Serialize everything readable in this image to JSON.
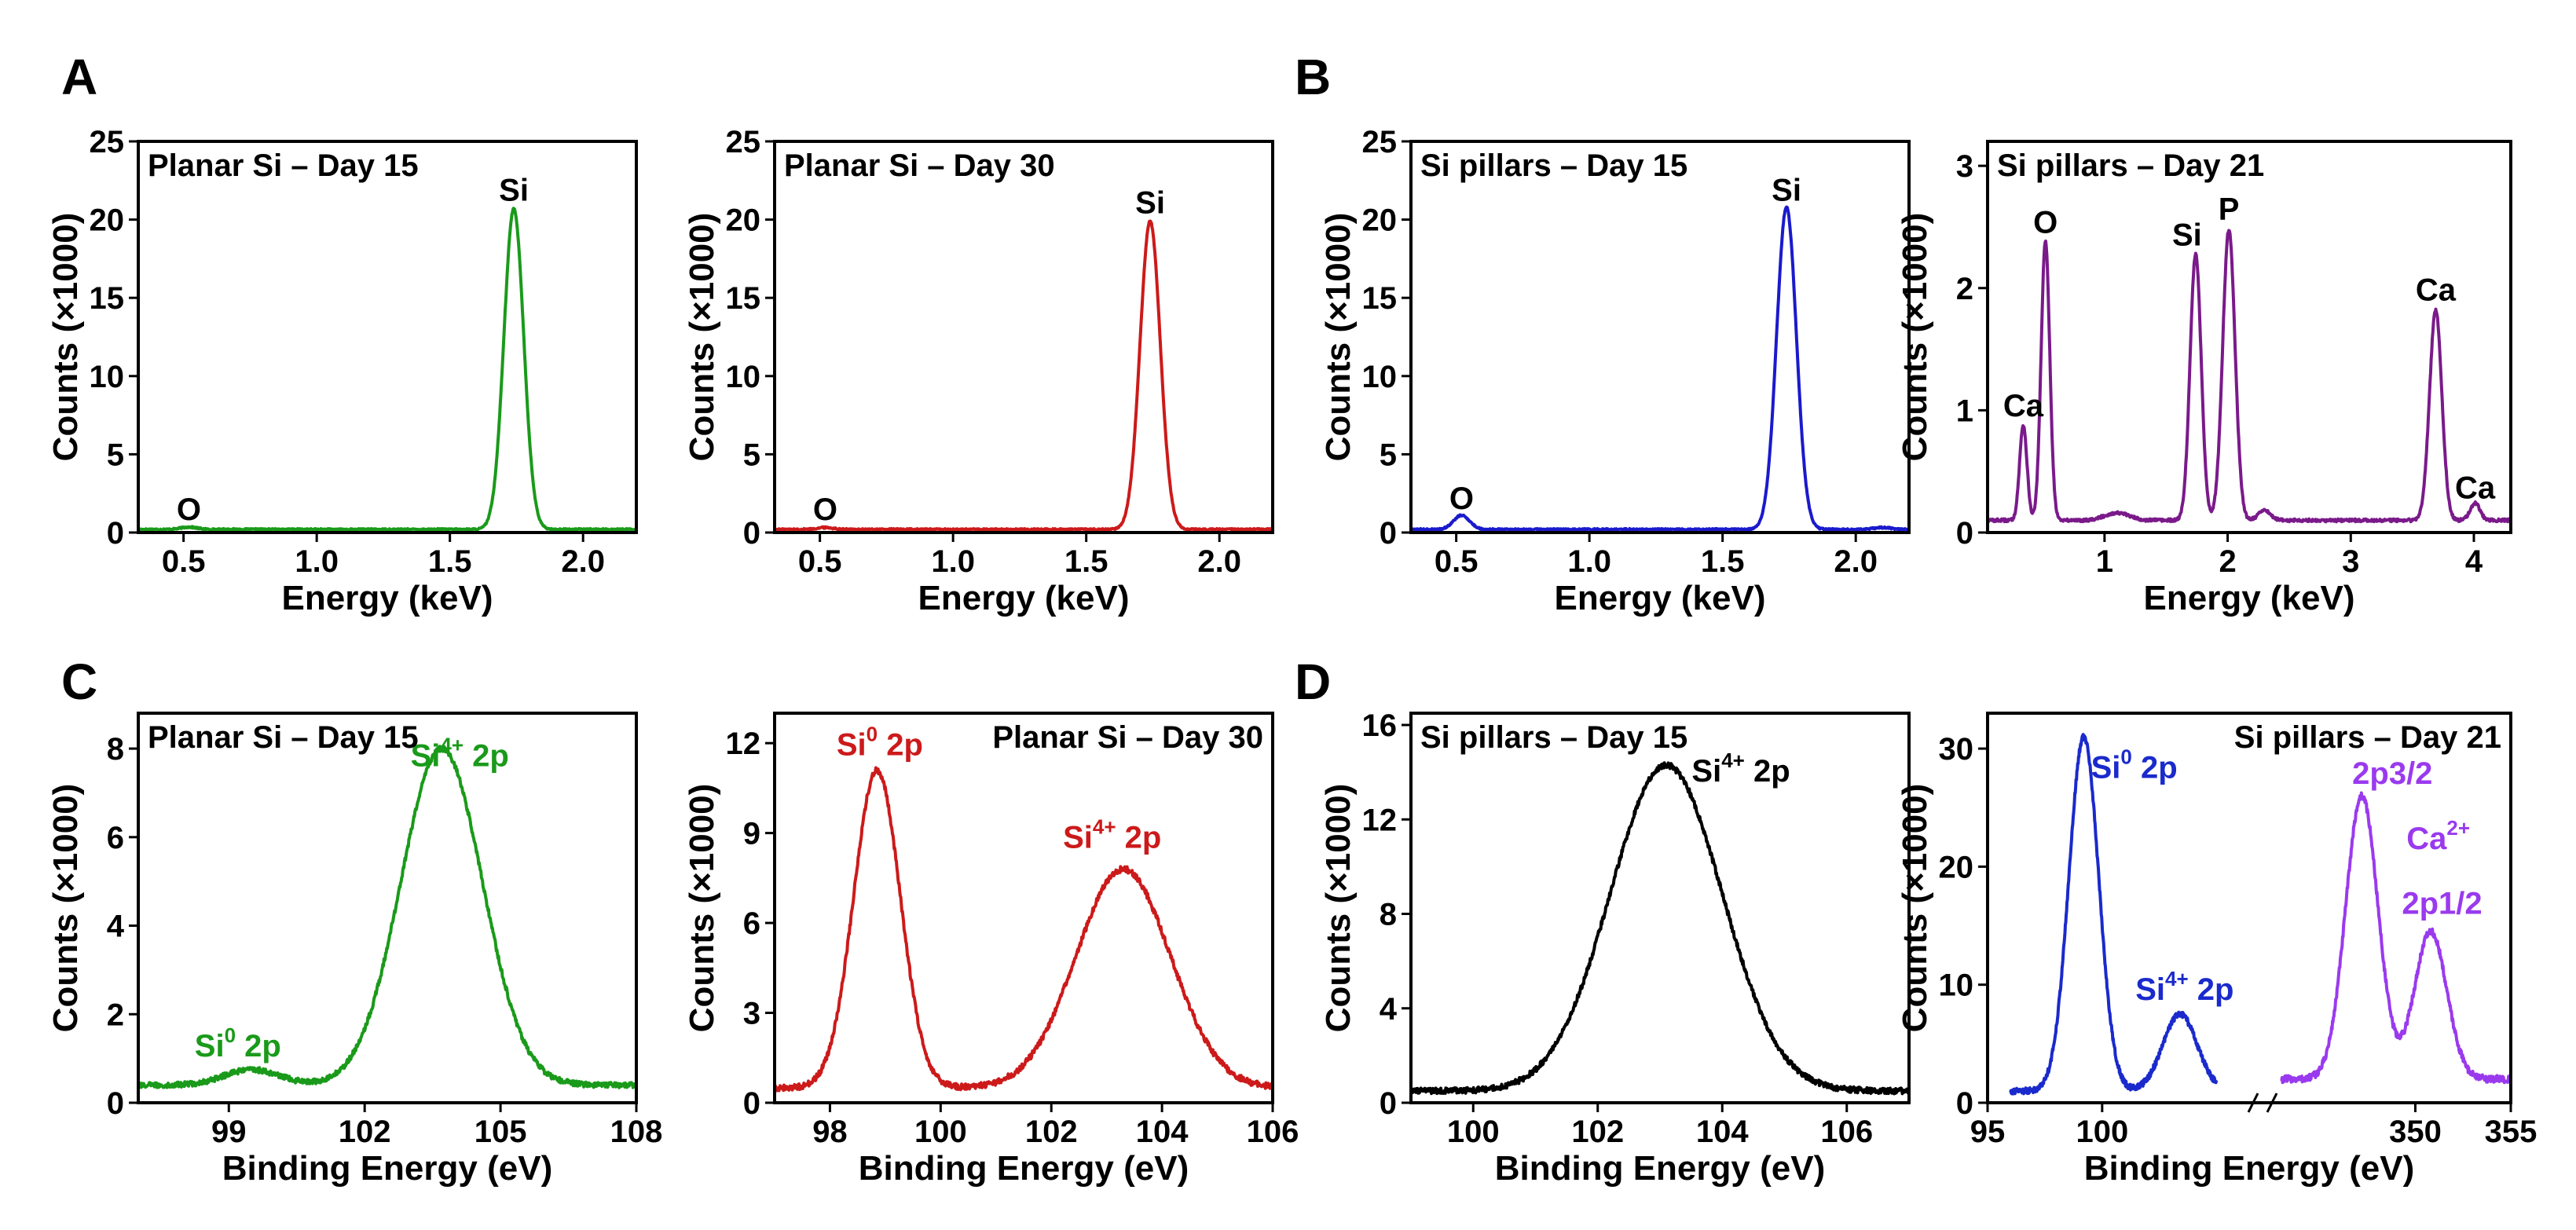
{
  "panel_letters": [
    "A",
    "B",
    "C",
    "D"
  ],
  "chart_data": [
    {
      "id": "a1",
      "type": "line",
      "color": "#1a9a1a",
      "style": "eds",
      "title": "Planar Si – Day 15",
      "xlabel": "Energy (keV)",
      "ylabel": "Counts (×1000)",
      "xlim": [
        0.33,
        2.2
      ],
      "ylim": [
        0,
        25
      ],
      "xticks": [
        0.5,
        1.0,
        1.5,
        2.0
      ],
      "xticklabels": [
        "0.5",
        "1.0",
        "1.5",
        "2.0"
      ],
      "yticks": [
        0,
        5,
        10,
        15,
        20,
        25
      ],
      "yticklabels": [
        "0",
        "5",
        "10",
        "15",
        "20",
        "25"
      ],
      "baseline": 0.2,
      "noise": 0.05,
      "slope": 0,
      "peaks": [
        [
          0.52,
          0.15,
          0.03
        ],
        [
          1.74,
          20.5,
          0.037
        ]
      ],
      "annotations": [
        {
          "text": "O",
          "x": 0.52,
          "y": 0.8,
          "color": "#000000"
        },
        {
          "text": "Si",
          "x": 1.74,
          "y": 21.2,
          "color": "#000000"
        }
      ]
    },
    {
      "id": "a2",
      "type": "line",
      "color": "#cc1a1a",
      "style": "eds",
      "title": "Planar Si – Day 30",
      "xlabel": "Energy (keV)",
      "ylabel": "Counts (×1000)",
      "xlim": [
        0.33,
        2.2
      ],
      "ylim": [
        0,
        25
      ],
      "xticks": [
        0.5,
        1.0,
        1.5,
        2.0
      ],
      "xticklabels": [
        "0.5",
        "1.0",
        "1.5",
        "2.0"
      ],
      "yticks": [
        0,
        5,
        10,
        15,
        20,
        25
      ],
      "yticklabels": [
        "0",
        "5",
        "10",
        "15",
        "20",
        "25"
      ],
      "baseline": 0.2,
      "noise": 0.05,
      "slope": 0,
      "peaks": [
        [
          0.52,
          0.12,
          0.03
        ],
        [
          1.74,
          19.7,
          0.038
        ]
      ],
      "annotations": [
        {
          "text": "O",
          "x": 0.52,
          "y": 0.8,
          "color": "#000000"
        },
        {
          "text": "Si",
          "x": 1.74,
          "y": 20.4,
          "color": "#000000"
        }
      ]
    },
    {
      "id": "b1",
      "type": "line",
      "color": "#1a1acc",
      "style": "eds",
      "title": "Si pillars – Day 15",
      "xlabel": "Energy (keV)",
      "ylabel": "Counts (×1000)",
      "xlim": [
        0.33,
        2.2
      ],
      "ylim": [
        0,
        25
      ],
      "xticks": [
        0.5,
        1.0,
        1.5,
        2.0
      ],
      "xticklabels": [
        "0.5",
        "1.0",
        "1.5",
        "2.0"
      ],
      "yticks": [
        0,
        5,
        10,
        15,
        20,
        25
      ],
      "yticklabels": [
        "0",
        "5",
        "10",
        "15",
        "20",
        "25"
      ],
      "baseline": 0.2,
      "noise": 0.05,
      "slope": 0,
      "peaks": [
        [
          0.52,
          0.9,
          0.03
        ],
        [
          1.74,
          20.6,
          0.037
        ],
        [
          2.1,
          0.12,
          0.03
        ]
      ],
      "annotations": [
        {
          "text": "O",
          "x": 0.52,
          "y": 1.5,
          "color": "#000000"
        },
        {
          "text": "Si",
          "x": 1.74,
          "y": 21.2,
          "color": "#000000"
        }
      ]
    },
    {
      "id": "b2",
      "type": "line",
      "color": "#7a1a8a",
      "style": "eds",
      "title": "Si pillars – Day 21",
      "xlabel": "Energy (keV)",
      "ylabel": "Counts (×1000)",
      "xlim": [
        0.05,
        4.3
      ],
      "ylim": [
        0,
        3.2
      ],
      "xticks": [
        1,
        2,
        3,
        4
      ],
      "xticklabels": [
        "1",
        "2",
        "3",
        "4"
      ],
      "yticks": [
        0,
        1,
        2,
        3
      ],
      "yticklabels": [
        "0",
        "1",
        "2",
        "3"
      ],
      "baseline": 0.1,
      "noise": 0.012,
      "slope": 0,
      "peaks": [
        [
          0.34,
          0.78,
          0.03
        ],
        [
          0.52,
          2.28,
          0.035
        ],
        [
          1.1,
          0.06,
          0.1
        ],
        [
          1.74,
          2.18,
          0.045
        ],
        [
          2.01,
          2.38,
          0.05
        ],
        [
          2.3,
          0.08,
          0.05
        ],
        [
          3.69,
          1.72,
          0.05
        ],
        [
          4.01,
          0.14,
          0.04
        ]
      ],
      "annotations": [
        {
          "text": "Ca",
          "x": 0.34,
          "y": 0.95,
          "color": "#000000"
        },
        {
          "text": "O",
          "x": 0.52,
          "y": 2.45,
          "color": "#000000"
        },
        {
          "text": "Si",
          "x": 1.67,
          "y": 2.35,
          "color": "#000000"
        },
        {
          "text": "P",
          "x": 2.01,
          "y": 2.56,
          "color": "#000000"
        },
        {
          "text": "Ca",
          "x": 3.69,
          "y": 1.9,
          "color": "#000000"
        },
        {
          "text": "Ca",
          "x": 4.01,
          "y": 0.28,
          "color": "#000000"
        }
      ]
    },
    {
      "id": "c1",
      "type": "line",
      "color": "#1a9a1a",
      "style": "xps",
      "title": "Planar Si – Day 15",
      "xlabel": "Binding Energy (eV)",
      "ylabel": "Counts (×1000)",
      "xlim": [
        97,
        108
      ],
      "ylim": [
        0,
        8.8
      ],
      "xticks": [
        99,
        102,
        105,
        108
      ],
      "xticklabels": [
        "99",
        "102",
        "105",
        "108"
      ],
      "yticks": [
        0,
        2,
        4,
        6,
        8
      ],
      "yticklabels": [
        "0",
        "2",
        "4",
        "6",
        "8"
      ],
      "baseline": 0.4,
      "noise": 0.06,
      "slope": 0,
      "peaks": [
        [
          99.5,
          0.35,
          0.6
        ],
        [
          103.7,
          7.6,
          0.9
        ]
      ],
      "annotations": [
        {
          "text": "Si",
          "sup": "0",
          "suffix": " 2p",
          "x": 99.2,
          "y": 1.05,
          "color": "#1a9a1a"
        },
        {
          "text": "Si",
          "sup": "4+",
          "suffix": " 2p",
          "x": 104.1,
          "y": 7.6,
          "color": "#1a9a1a"
        }
      ]
    },
    {
      "id": "c2",
      "type": "line",
      "color": "#cc1a1a",
      "style": "xps",
      "title": "Planar Si – Day 30",
      "xlabel": "Binding Energy (eV)",
      "ylabel": "Counts (×1000)",
      "xlim": [
        97,
        106
      ],
      "ylim": [
        0,
        13
      ],
      "xticks": [
        98,
        100,
        102,
        104,
        106
      ],
      "xticklabels": [
        "98",
        "100",
        "102",
        "104",
        "106"
      ],
      "yticks": [
        0,
        3,
        6,
        9,
        12
      ],
      "yticklabels": [
        "0",
        "3",
        "6",
        "9",
        "12"
      ],
      "baseline": 0.5,
      "noise": 0.1,
      "slope": 0,
      "peaks": [
        [
          98.85,
          10.6,
          0.42
        ],
        [
          103.3,
          7.3,
          0.85
        ]
      ],
      "annotations": [
        {
          "text": "Si",
          "sup": "0",
          "suffix": " 2p",
          "x": 98.9,
          "y": 11.6,
          "color": "#cc1a1a"
        },
        {
          "text": "Si",
          "sup": "4+",
          "suffix": " 2p",
          "x": 103.1,
          "y": 8.5,
          "color": "#cc1a1a"
        }
      ]
    },
    {
      "id": "d1",
      "type": "line",
      "color": "#000000",
      "style": "xps",
      "title": "Si pillars – Day 15",
      "xlabel": "Binding Energy (eV)",
      "ylabel": "Counts (×1000)",
      "xlim": [
        99,
        107
      ],
      "ylim": [
        0,
        16.5
      ],
      "xticks": [
        100,
        102,
        104,
        106
      ],
      "xticklabels": [
        "100",
        "102",
        "104",
        "106"
      ],
      "yticks": [
        0,
        4,
        8,
        12,
        16
      ],
      "yticklabels": [
        "0",
        "4",
        "8",
        "12",
        "16"
      ],
      "baseline": 0.5,
      "noise": 0.12,
      "slope": 0,
      "peaks": [
        [
          103.1,
          13.8,
          0.9
        ]
      ],
      "annotations": [
        {
          "text": "Si",
          "sup": "4+",
          "suffix": " 2p",
          "x": 104.3,
          "y": 13.6,
          "color": "#000000"
        }
      ]
    },
    {
      "id": "d2",
      "type": "line",
      "style": "broken",
      "title": "Si pillars – Day 21",
      "xlabel": "Binding Energy (eV)",
      "ylabel": "Counts (×1000)",
      "ylim": [
        0,
        33
      ],
      "yticks": [
        0,
        10,
        20,
        30
      ],
      "yticklabels": [
        "0",
        "10",
        "20",
        "30"
      ],
      "segments": [
        {
          "color": "#1a2acc",
          "xlim": [
            95,
            107
          ],
          "xdata": [
            96,
            105
          ],
          "xticks": [
            95,
            100
          ],
          "xticklabels": [
            "95",
            "100"
          ],
          "baseline": 1,
          "noise": 0.25,
          "peaks": [
            [
              99.2,
              30,
              0.65
            ],
            [
              103.4,
              6.5,
              0.75
            ]
          ]
        },
        {
          "color": "#9a3aee",
          "xlim": [
            342,
            355
          ],
          "xdata": [
            343,
            355
          ],
          "xticks": [
            350,
            355
          ],
          "xticklabels": [
            "350",
            "355"
          ],
          "baseline": 2,
          "noise": 0.3,
          "peaks": [
            [
              347.2,
              24,
              0.85
            ],
            [
              350.8,
              12.5,
              0.85
            ]
          ]
        }
      ],
      "annotations": [
        {
          "text": "Si",
          "sup": "0",
          "suffix": " 2p",
          "seg": 0,
          "x": 101.4,
          "y": 27.5,
          "color": "#1a2acc"
        },
        {
          "text": "Si",
          "sup": "4+",
          "suffix": " 2p",
          "seg": 0,
          "x": 103.6,
          "y": 8.7,
          "color": "#1a2acc"
        },
        {
          "text": "2p3/2",
          "seg": 1,
          "x": 348.8,
          "y": 27.0,
          "color": "#9a3aee"
        },
        {
          "text": "Ca",
          "sup": "2+",
          "seg": 1,
          "x": 351.2,
          "y": 21.5,
          "color": "#9a3aee"
        },
        {
          "text": "2p1/2",
          "seg": 1,
          "x": 351.4,
          "y": 16.0,
          "color": "#9a3aee"
        }
      ]
    }
  ]
}
